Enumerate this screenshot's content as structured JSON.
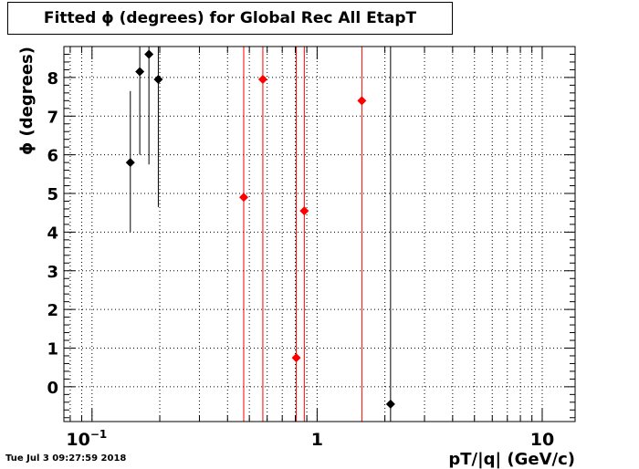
{
  "chart_data": {
    "type": "scatter",
    "title": "Fitted ϕ (degrees) for Global Rec All EtapT",
    "xlabel": "pT/|q| (GeV/c)",
    "ylabel": "ϕ (degrees)",
    "x_scale": "log",
    "xlim": [
      0.075,
      14
    ],
    "ylim": [
      -0.9,
      8.8
    ],
    "grid": true,
    "x_tick_labels": [
      {
        "value": 0.1,
        "label": "10",
        "sup": "−1"
      },
      {
        "value": 1,
        "label": "1",
        "sup": ""
      },
      {
        "value": 10,
        "label": "10",
        "sup": ""
      }
    ],
    "y_tick_labels": [
      "0",
      "1",
      "2",
      "3",
      "4",
      "5",
      "6",
      "7",
      "8"
    ],
    "series": [
      {
        "color": "#000000",
        "points": [
          {
            "x": 0.148,
            "y": 5.8,
            "ylow": 4.0,
            "yhigh": 7.65
          },
          {
            "x": 0.163,
            "y": 8.15,
            "ylow": 6.0,
            "yhigh": 8.8
          },
          {
            "x": 0.179,
            "y": 8.6,
            "ylow": 5.75,
            "yhigh": 8.8
          },
          {
            "x": 0.197,
            "y": 7.95,
            "ylow": 4.65,
            "yhigh": 8.8
          },
          {
            "x": 2.12,
            "y": -0.45,
            "ylow": -0.9,
            "yhigh": 8.8
          }
        ]
      },
      {
        "color": "#ff0000",
        "points": [
          {
            "x": 0.472,
            "y": 4.9,
            "ylow": -0.9,
            "yhigh": 8.8
          },
          {
            "x": 0.574,
            "y": 7.95,
            "ylow": -0.9,
            "yhigh": 8.8
          },
          {
            "x": 0.808,
            "y": 0.75,
            "ylow": -0.9,
            "yhigh": 8.8
          },
          {
            "x": 0.877,
            "y": 4.55,
            "ylow": -0.9,
            "yhigh": 8.8
          },
          {
            "x": 1.58,
            "y": 7.4,
            "ylow": -0.9,
            "yhigh": 8.8
          }
        ]
      }
    ]
  },
  "footer": {
    "date": "Tue Jul  3 09:27:59 2018"
  }
}
